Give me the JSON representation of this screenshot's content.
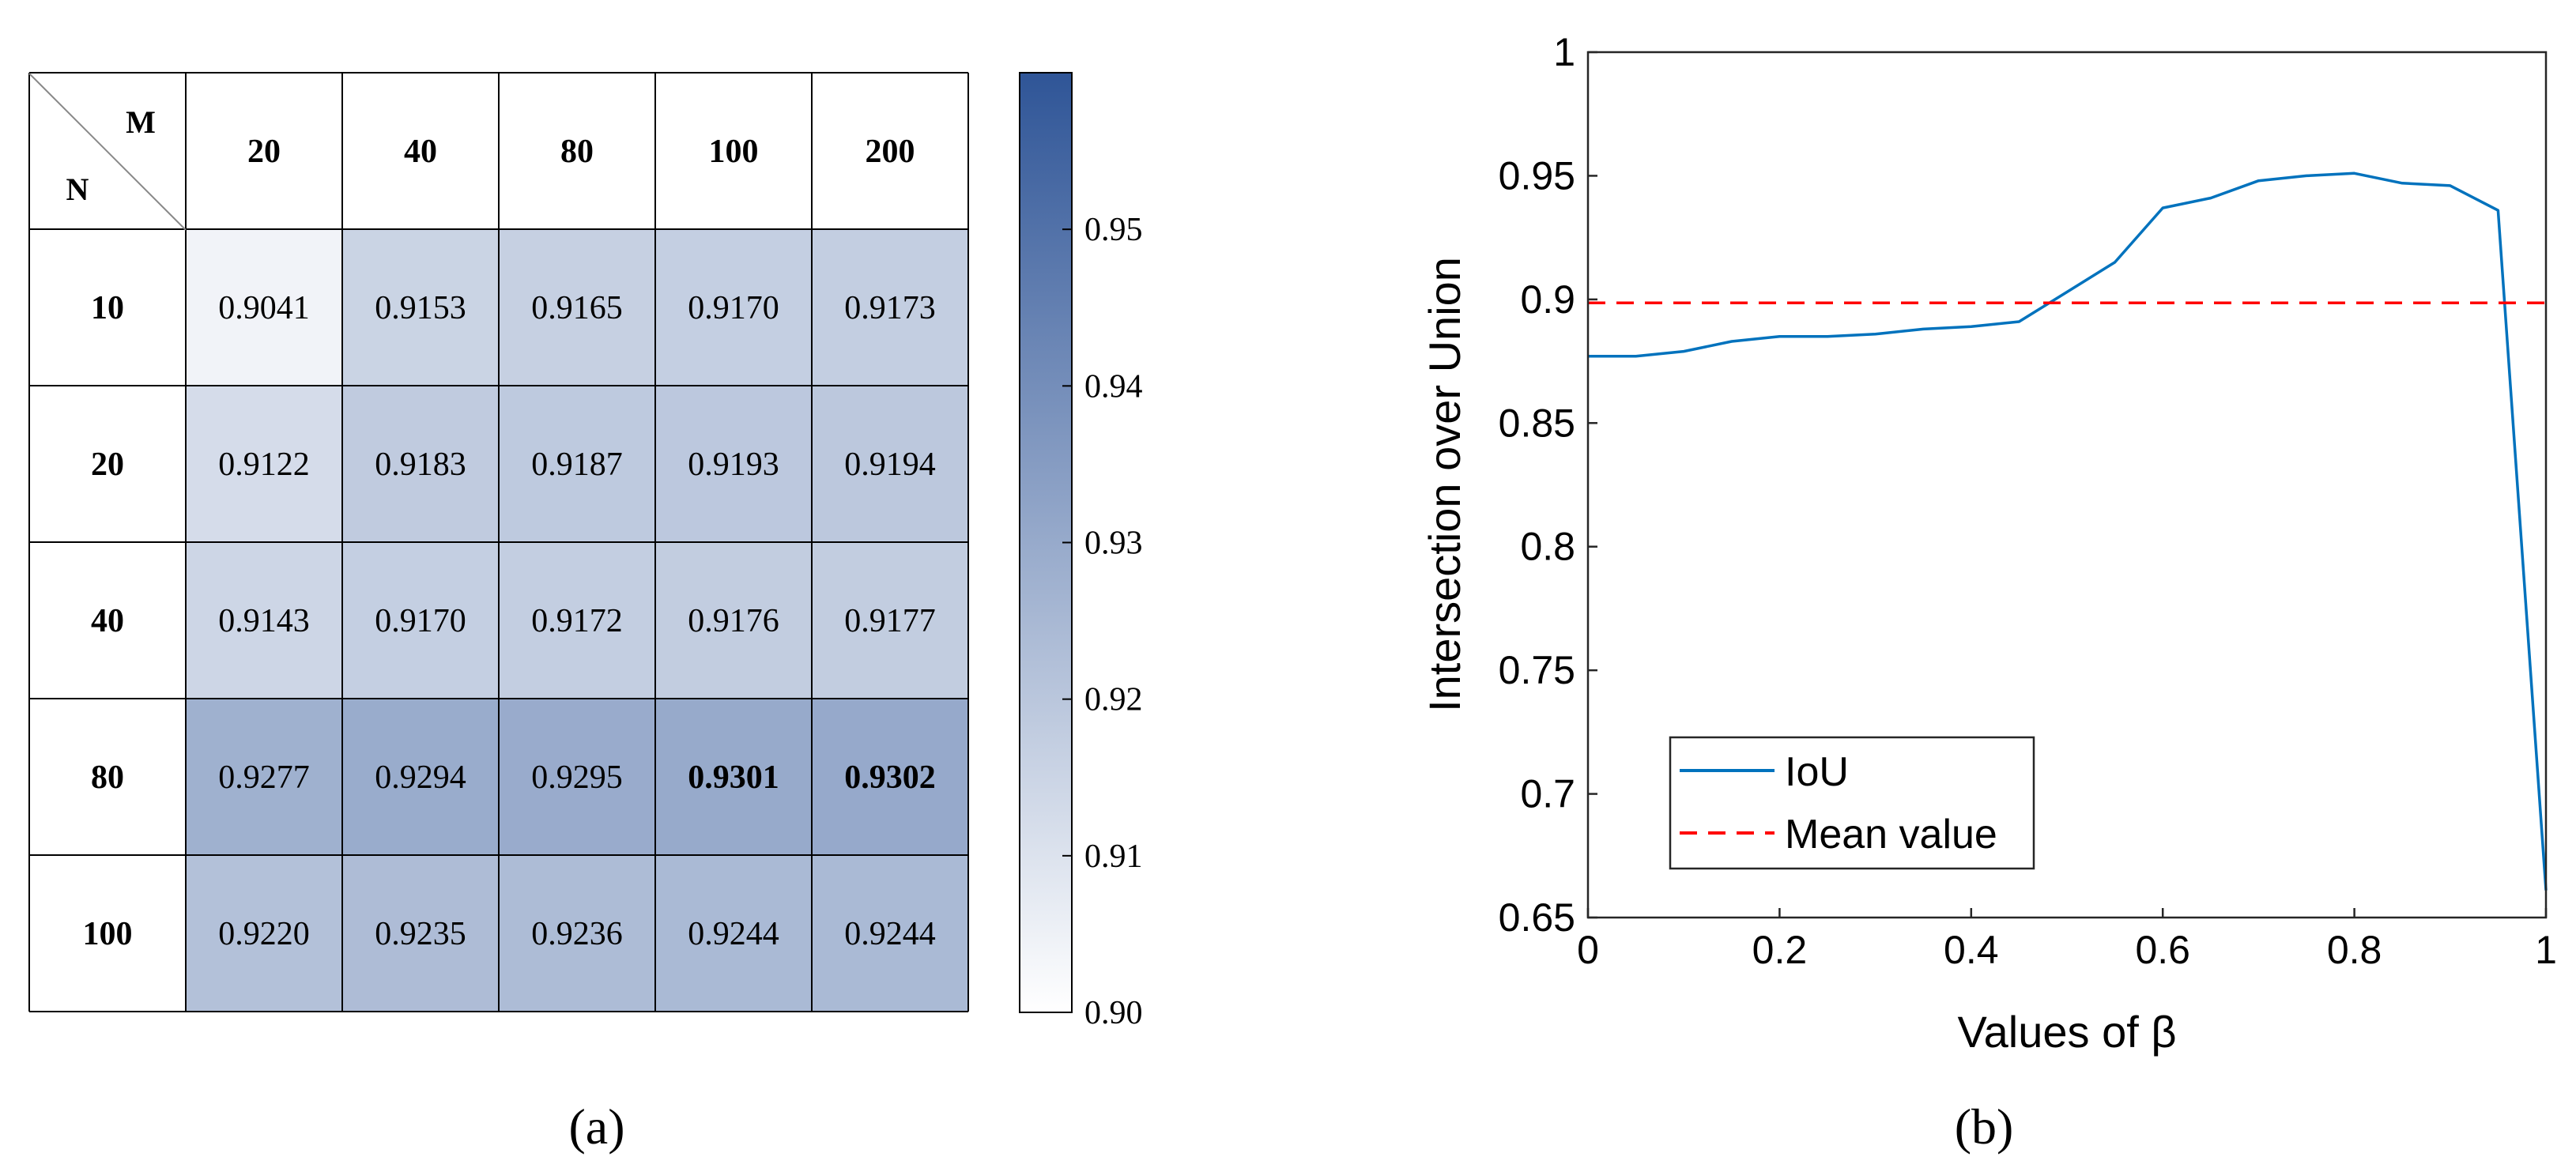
{
  "chart_data": [
    {
      "type": "heatmap",
      "panel_label": "(a)",
      "corner_row_label": "N",
      "corner_col_label": "M",
      "col_labels": [
        "20",
        "40",
        "80",
        "100",
        "200"
      ],
      "row_labels": [
        "10",
        "20",
        "40",
        "80",
        "100"
      ],
      "values": [
        [
          "0.9041",
          "0.9153",
          "0.9165",
          "0.9170",
          "0.9173"
        ],
        [
          "0.9122",
          "0.9183",
          "0.9187",
          "0.9193",
          "0.9194"
        ],
        [
          "0.9143",
          "0.9170",
          "0.9172",
          "0.9176",
          "0.9177"
        ],
        [
          "0.9277",
          "0.9294",
          "0.9295",
          "0.9301",
          "0.9302"
        ],
        [
          "0.9220",
          "0.9235",
          "0.9236",
          "0.9244",
          "0.9244"
        ]
      ],
      "bold_cells": [
        [
          3,
          3
        ],
        [
          3,
          4
        ]
      ],
      "colorbar": {
        "range": [
          0.9,
          0.96
        ],
        "ticks": [
          0.9,
          0.91,
          0.92,
          0.93,
          0.94,
          0.95
        ],
        "tick_labels": [
          "0.90",
          "0.91",
          "0.92",
          "0.93",
          "0.94",
          "0.95"
        ],
        "color_low": "#ffffff",
        "color_high": "#2f5597"
      }
    },
    {
      "type": "line",
      "panel_label": "(b)",
      "xlabel": "Values of β",
      "ylabel": "Intersection over Union",
      "xlim": [
        0,
        1
      ],
      "ylim": [
        0.65,
        1
      ],
      "xticks": [
        0,
        0.2,
        0.4,
        0.6,
        0.8,
        1
      ],
      "xtick_labels": [
        "0",
        "0.2",
        "0.4",
        "0.6",
        "0.8",
        "1"
      ],
      "yticks": [
        0.65,
        0.7,
        0.75,
        0.8,
        0.85,
        0.9,
        0.95,
        1
      ],
      "ytick_labels": [
        "0.65",
        "0.7",
        "0.75",
        "0.8",
        "0.85",
        "0.9",
        "0.95",
        "1"
      ],
      "legend_location": "bottom-left",
      "series": [
        {
          "name": "IoU",
          "color": "#0072bd",
          "style": "solid",
          "x": [
            0,
            0.05,
            0.1,
            0.15,
            0.2,
            0.25,
            0.3,
            0.35,
            0.4,
            0.45,
            0.5,
            0.55,
            0.6,
            0.65,
            0.7,
            0.75,
            0.8,
            0.85,
            0.9,
            0.95,
            1
          ],
          "y": [
            0.877,
            0.877,
            0.879,
            0.883,
            0.885,
            0.885,
            0.886,
            0.888,
            0.889,
            0.891,
            0.903,
            0.915,
            0.937,
            0.941,
            0.948,
            0.95,
            0.951,
            0.947,
            0.946,
            0.936,
            0.661
          ]
        },
        {
          "name": "Mean value",
          "color": "#ff0000",
          "style": "dashed",
          "x": [
            0,
            1
          ],
          "y": [
            0.8986,
            0.8986
          ]
        }
      ]
    }
  ]
}
